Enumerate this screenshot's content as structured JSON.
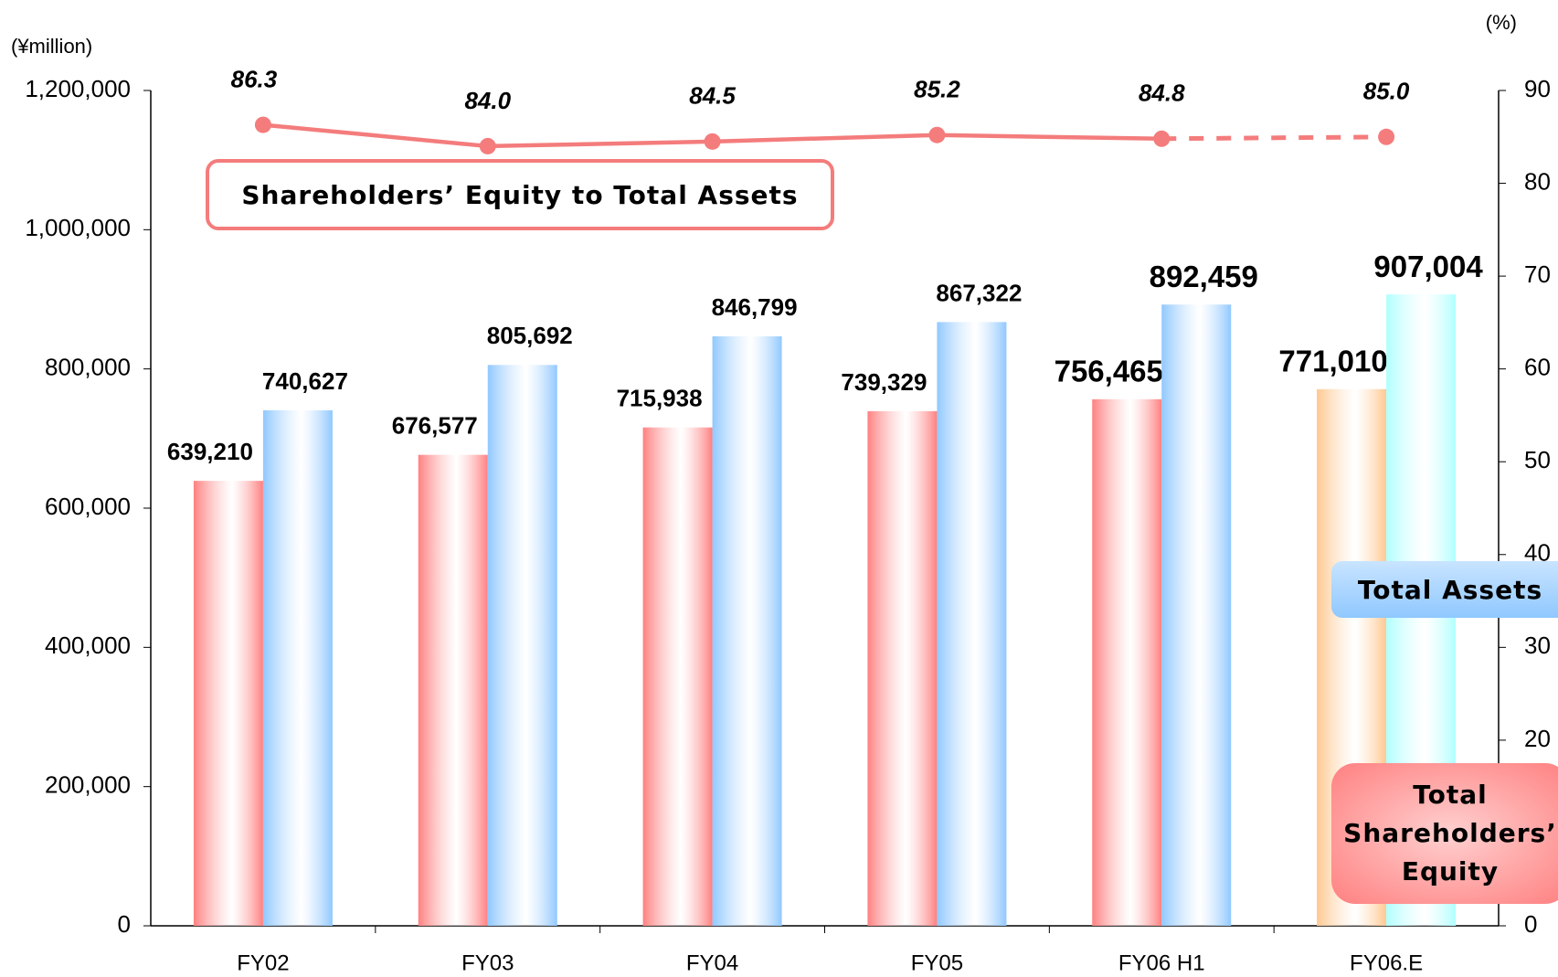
{
  "chart_data": {
    "type": "bar_line",
    "y_unit_label": "(¥million)",
    "y2_unit_label": "(%)",
    "categories": [
      "FY02",
      "FY03",
      "FY04",
      "FY05",
      "FY06 H1",
      "FY06.E"
    ],
    "projected": [
      false,
      false,
      false,
      false,
      false,
      true
    ],
    "series": [
      {
        "name": "Total Shareholders’ Equity",
        "type": "bar",
        "color": "#ff8080",
        "colors": [
          "#ff8080",
          "#ff8080",
          "#ff8080",
          "#ff8080",
          "#ff8080",
          "#ffc890"
        ],
        "values": [
          639210,
          676577,
          715938,
          739329,
          756465,
          771010
        ],
        "value_labels": [
          "639,210",
          "676,577",
          "715,938",
          "739,329",
          "756,465",
          "771,010"
        ]
      },
      {
        "name": "Total Assets",
        "type": "bar",
        "color": "#90c8ff",
        "colors": [
          "#90c8ff",
          "#90c8ff",
          "#90c8ff",
          "#90c8ff",
          "#90c8ff",
          "#b0ffff"
        ],
        "values": [
          740627,
          805692,
          846799,
          867322,
          892459,
          907004
        ],
        "value_labels": [
          "740,627",
          "805,692",
          "846,799",
          "867,322",
          "892,459",
          "907,004"
        ]
      },
      {
        "name": "Shareholders’ Equity to Total Assets",
        "type": "line",
        "axis": "y2",
        "color": "#f47c7c",
        "values": [
          86.3,
          84.0,
          84.5,
          85.2,
          84.8,
          85.0
        ],
        "value_labels": [
          "86.3",
          "84.0",
          "84.5",
          "85.2",
          "84.8",
          "85.0"
        ]
      }
    ],
    "ylim": [
      0,
      1200000
    ],
    "yticks": [
      0,
      {
        "value": 200000,
        "label": "200,000"
      },
      {
        "value": 400000,
        "label": "400,000"
      },
      {
        "value": 600000,
        "label": "600,000"
      },
      {
        "value": 800000,
        "label": "800,000"
      },
      {
        "value": 1000000,
        "label": "1,000,000"
      },
      {
        "value": 1200000,
        "label": "1,200,000"
      }
    ],
    "y2lim": [
      0,
      90
    ],
    "y2ticks": [
      0,
      10,
      20,
      30,
      40,
      50,
      60,
      70,
      80,
      90
    ],
    "grid": false
  }
}
